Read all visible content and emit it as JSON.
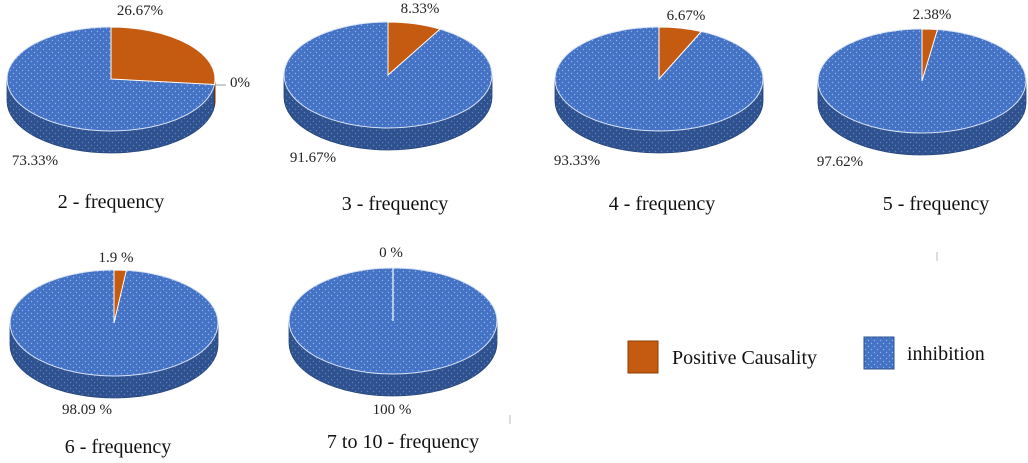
{
  "colors": {
    "positive": "#c55a11",
    "positive_side": "#8c3d08",
    "inhibition": "#4472c4",
    "inhibition_side": "#2f528f",
    "dot": "#8fb0e8"
  },
  "legend": {
    "items": [
      {
        "label": "Positive Causality",
        "color": "#c55a11",
        "pattern": "solid"
      },
      {
        "label": "inhibition",
        "color": "#4472c4",
        "pattern": "dots"
      }
    ]
  },
  "chart_data": [
    {
      "type": "pie",
      "caption": "2 - frequency",
      "series": [
        {
          "name": "Positive Causality",
          "value": 26.67,
          "label": "26.67%"
        },
        {
          "name": "inhibition",
          "value": 73.33,
          "label": "73.33%"
        }
      ],
      "extra_label": "0%"
    },
    {
      "type": "pie",
      "caption": "3 - frequency",
      "series": [
        {
          "name": "Positive Causality",
          "value": 8.33,
          "label": "8.33%"
        },
        {
          "name": "inhibition",
          "value": 91.67,
          "label": "91.67%"
        }
      ]
    },
    {
      "type": "pie",
      "caption": "4 - frequency",
      "series": [
        {
          "name": "Positive Causality",
          "value": 6.67,
          "label": "6.67%"
        },
        {
          "name": "inhibition",
          "value": 93.33,
          "label": "93.33%"
        }
      ]
    },
    {
      "type": "pie",
      "caption": "5 - frequency",
      "series": [
        {
          "name": "Positive Causality",
          "value": 2.38,
          "label": "2.38%"
        },
        {
          "name": "inhibition",
          "value": 97.62,
          "label": "97.62%"
        }
      ]
    },
    {
      "type": "pie",
      "caption": "6 - frequency",
      "series": [
        {
          "name": "Positive Causality",
          "value": 1.9,
          "label": "1.9 %"
        },
        {
          "name": "inhibition",
          "value": 98.09,
          "label": "98.09 %"
        }
      ]
    },
    {
      "type": "pie",
      "caption": "7 to 10 - frequency",
      "series": [
        {
          "name": "Positive Causality",
          "value": 0,
          "label": "0 %"
        },
        {
          "name": "inhibition",
          "value": 100,
          "label": "100 %"
        }
      ]
    }
  ]
}
